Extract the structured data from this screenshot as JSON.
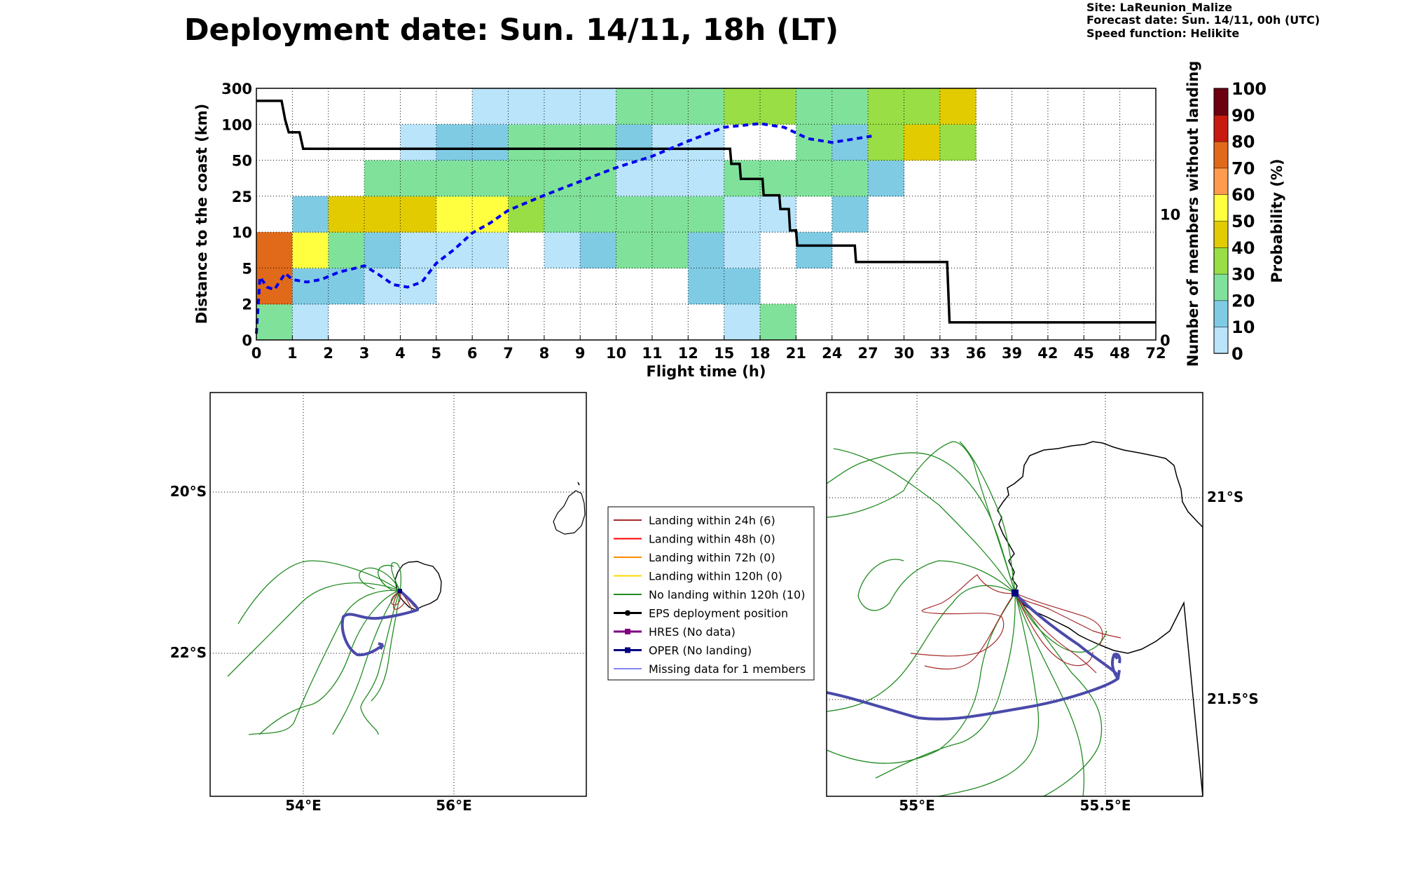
{
  "title": "Deployment date: Sun. 14/11, 18h (LT)",
  "info": {
    "site": "Site: LaReunion_Malize",
    "forecast": "Forecast date: Sun. 14/11, 00h (UTC)",
    "speed": "Speed function: Helikite"
  },
  "colors": {
    "bins": [
      "#b9e4fa",
      "#80cbe4",
      "#80e29a",
      "#99de44",
      "#e2cb00",
      "#ffff40",
      "#ff9b4e",
      "#e06a1a",
      "#c81a10",
      "#6a0010"
    ],
    "ensemble_line": "#000000",
    "oper_line": "#0000ee",
    "landing24": "#a52a2a",
    "landing48": "#ff0000",
    "landing72": "#ff8c00",
    "landing120": "#ffd700",
    "no_landing": "#228b22",
    "eps_pos": "#000000",
    "hres": "#800080",
    "oper": "#000080",
    "missing": "#5c5cf0"
  },
  "chart_data": [
    {
      "type": "heatmap",
      "xlabel": "Flight time (h)",
      "ylabel": "Distance to the coast (km)",
      "y2label": "Number of members without landing",
      "colorbar_label": "Probability (%)",
      "x_ticks": [
        "0",
        "1",
        "2",
        "3",
        "4",
        "5",
        "6",
        "7",
        "8",
        "9",
        "10",
        "11",
        "12",
        "15",
        "18",
        "21",
        "24",
        "27",
        "30",
        "33",
        "36",
        "39",
        "42",
        "45",
        "48",
        "72"
      ],
      "y_ticks": [
        "0",
        "2",
        "5",
        "10",
        "25",
        "50",
        "100",
        "300"
      ],
      "y2_ticks": [
        "0",
        "10"
      ],
      "y2_range": [
        0,
        20
      ],
      "colorbar_ticks": [
        "0",
        "10",
        "20",
        "30",
        "40",
        "50",
        "60",
        "70",
        "80",
        "90",
        "100"
      ],
      "grid": true,
      "cells": [
        {
          "col": 0,
          "row": 0,
          "bin": 2
        },
        {
          "col": 0,
          "row": 1,
          "bin": 7
        },
        {
          "col": 0,
          "row": 2,
          "bin": 7
        },
        {
          "col": 1,
          "row": 0,
          "bin": 0
        },
        {
          "col": 1,
          "row": 1,
          "bin": 1
        },
        {
          "col": 1,
          "row": 2,
          "bin": 5
        },
        {
          "col": 1,
          "row": 3,
          "bin": 1
        },
        {
          "col": 2,
          "row": 1,
          "bin": 1
        },
        {
          "col": 2,
          "row": 2,
          "bin": 2
        },
        {
          "col": 2,
          "row": 3,
          "bin": 4
        },
        {
          "col": 3,
          "row": 1,
          "bin": 0
        },
        {
          "col": 3,
          "row": 2,
          "bin": 1
        },
        {
          "col": 3,
          "row": 3,
          "bin": 4
        },
        {
          "col": 3,
          "row": 4,
          "bin": 2
        },
        {
          "col": 4,
          "row": 1,
          "bin": 0
        },
        {
          "col": 4,
          "row": 2,
          "bin": 0
        },
        {
          "col": 4,
          "row": 3,
          "bin": 4
        },
        {
          "col": 4,
          "row": 4,
          "bin": 2
        },
        {
          "col": 4,
          "row": 5,
          "bin": 0
        },
        {
          "col": 5,
          "row": 2,
          "bin": 0
        },
        {
          "col": 5,
          "row": 3,
          "bin": 5
        },
        {
          "col": 5,
          "row": 4,
          "bin": 2
        },
        {
          "col": 5,
          "row": 5,
          "bin": 1
        },
        {
          "col": 6,
          "row": 2,
          "bin": 0
        },
        {
          "col": 6,
          "row": 3,
          "bin": 5
        },
        {
          "col": 6,
          "row": 4,
          "bin": 2
        },
        {
          "col": 6,
          "row": 5,
          "bin": 1
        },
        {
          "col": 6,
          "row": 6,
          "bin": 0
        },
        {
          "col": 7,
          "row": 3,
          "bin": 3
        },
        {
          "col": 7,
          "row": 4,
          "bin": 2
        },
        {
          "col": 7,
          "row": 5,
          "bin": 2
        },
        {
          "col": 7,
          "row": 6,
          "bin": 0
        },
        {
          "col": 8,
          "row": 2,
          "bin": 0
        },
        {
          "col": 8,
          "row": 3,
          "bin": 2
        },
        {
          "col": 8,
          "row": 4,
          "bin": 2
        },
        {
          "col": 8,
          "row": 5,
          "bin": 2
        },
        {
          "col": 8,
          "row": 6,
          "bin": 0
        },
        {
          "col": 9,
          "row": 2,
          "bin": 1
        },
        {
          "col": 9,
          "row": 3,
          "bin": 2
        },
        {
          "col": 9,
          "row": 4,
          "bin": 2
        },
        {
          "col": 9,
          "row": 5,
          "bin": 2
        },
        {
          "col": 9,
          "row": 6,
          "bin": 0
        },
        {
          "col": 10,
          "row": 2,
          "bin": 2
        },
        {
          "col": 10,
          "row": 3,
          "bin": 2
        },
        {
          "col": 10,
          "row": 4,
          "bin": 0
        },
        {
          "col": 10,
          "row": 5,
          "bin": 1
        },
        {
          "col": 10,
          "row": 6,
          "bin": 2
        },
        {
          "col": 11,
          "row": 2,
          "bin": 2
        },
        {
          "col": 11,
          "row": 3,
          "bin": 2
        },
        {
          "col": 11,
          "row": 4,
          "bin": 0
        },
        {
          "col": 11,
          "row": 5,
          "bin": 0
        },
        {
          "col": 11,
          "row": 6,
          "bin": 2
        },
        {
          "col": 12,
          "row": 1,
          "bin": 1
        },
        {
          "col": 12,
          "row": 2,
          "bin": 1
        },
        {
          "col": 12,
          "row": 3,
          "bin": 2
        },
        {
          "col": 12,
          "row": 4,
          "bin": 0
        },
        {
          "col": 12,
          "row": 5,
          "bin": 0
        },
        {
          "col": 12,
          "row": 6,
          "bin": 2
        },
        {
          "col": 13,
          "row": 0,
          "bin": 0
        },
        {
          "col": 13,
          "row": 1,
          "bin": 1
        },
        {
          "col": 13,
          "row": 2,
          "bin": 0
        },
        {
          "col": 13,
          "row": 3,
          "bin": 0
        },
        {
          "col": 13,
          "row": 4,
          "bin": 2
        },
        {
          "col": 13,
          "row": 6,
          "bin": 3
        },
        {
          "col": 14,
          "row": 0,
          "bin": 2
        },
        {
          "col": 14,
          "row": 3,
          "bin": 0
        },
        {
          "col": 14,
          "row": 4,
          "bin": 2
        },
        {
          "col": 14,
          "row": 6,
          "bin": 3
        },
        {
          "col": 15,
          "row": 2,
          "bin": 1
        },
        {
          "col": 15,
          "row": 4,
          "bin": 2
        },
        {
          "col": 15,
          "row": 5,
          "bin": 2
        },
        {
          "col": 15,
          "row": 6,
          "bin": 2
        },
        {
          "col": 16,
          "row": 3,
          "bin": 1
        },
        {
          "col": 16,
          "row": 4,
          "bin": 2
        },
        {
          "col": 16,
          "row": 5,
          "bin": 1
        },
        {
          "col": 16,
          "row": 6,
          "bin": 2
        },
        {
          "col": 17,
          "row": 4,
          "bin": 1
        },
        {
          "col": 17,
          "row": 5,
          "bin": 3
        },
        {
          "col": 17,
          "row": 6,
          "bin": 3
        },
        {
          "col": 18,
          "row": 5,
          "bin": 4
        },
        {
          "col": 18,
          "row": 6,
          "bin": 3
        },
        {
          "col": 19,
          "row": 5,
          "bin": 3
        },
        {
          "col": 19,
          "row": 6,
          "bin": 4
        }
      ],
      "series": [
        {
          "style": "solid",
          "points": [
            [
              0,
              19
            ],
            [
              0.7,
              19
            ],
            [
              0.8,
              17.5
            ],
            [
              0.9,
              16.5
            ],
            [
              1.2,
              16.5
            ],
            [
              1.3,
              15.2
            ],
            [
              15.5,
              15.2
            ],
            [
              15.6,
              14
            ],
            [
              16.3,
              14
            ],
            [
              16.4,
              12.8
            ],
            [
              18.2,
              12.8
            ],
            [
              18.3,
              11.5
            ],
            [
              19.6,
              11.5
            ],
            [
              19.7,
              10.4
            ],
            [
              20.4,
              10.4
            ],
            [
              20.5,
              8.7
            ],
            [
              21,
              8.7
            ],
            [
              21.1,
              7.5
            ],
            [
              25.9,
              7.5
            ],
            [
              26,
              6.2
            ],
            [
              33.6,
              6.2
            ],
            [
              33.8,
              1.4
            ],
            [
              72,
              1.4
            ]
          ]
        },
        {
          "style": "dashed",
          "points": [
            [
              0,
              0.5
            ],
            [
              0.1,
              5
            ],
            [
              0.3,
              4.2
            ],
            [
              0.5,
              4
            ],
            [
              0.8,
              5.3
            ],
            [
              1,
              4.8
            ],
            [
              1.4,
              4.6
            ],
            [
              1.8,
              4.8
            ],
            [
              2.3,
              5.4
            ],
            [
              2.6,
              5.6
            ],
            [
              3,
              5.9
            ],
            [
              3.4,
              5.2
            ],
            [
              3.8,
              4.4
            ],
            [
              4.2,
              4.2
            ],
            [
              4.6,
              4.6
            ],
            [
              5,
              6.1
            ],
            [
              5.5,
              7.2
            ],
            [
              6,
              8.5
            ],
            [
              6.5,
              9.3
            ],
            [
              7,
              10.3
            ],
            [
              8,
              11.5
            ],
            [
              9,
              12.6
            ],
            [
              10,
              13.7
            ],
            [
              11,
              14.6
            ],
            [
              12,
              15.8
            ],
            [
              15,
              16.9
            ],
            [
              18,
              17.2
            ],
            [
              20,
              16.9
            ],
            [
              22,
              16.0
            ],
            [
              24,
              15.7
            ],
            [
              26,
              16.0
            ],
            [
              27.3,
              16.2
            ]
          ]
        }
      ]
    },
    {
      "type": "map",
      "x_ticks": [
        "54°E",
        "56°E"
      ],
      "y_ticks": [
        "20°S",
        "22°S"
      ],
      "grid": true
    },
    {
      "type": "map",
      "x_ticks": [
        "55°E",
        "55.5°E"
      ],
      "y_ticks": [
        "21°S",
        "21.5°S"
      ],
      "grid": true
    }
  ],
  "legend": [
    {
      "label": "Landing within 24h (6)",
      "color": "#a52a2a",
      "kind": "line"
    },
    {
      "label": "Landing within 48h (0)",
      "color": "#ff0000",
      "kind": "line"
    },
    {
      "label": "Landing within 72h (0)",
      "color": "#ff8c00",
      "kind": "line"
    },
    {
      "label": "Landing within 120h (0)",
      "color": "#ffd700",
      "kind": "line"
    },
    {
      "label": "No landing within 120h (10)",
      "color": "#228b22",
      "kind": "line"
    },
    {
      "label": "EPS deployment position",
      "color": "#000000",
      "kind": "circle"
    },
    {
      "label": "HRES (No data)",
      "color": "#800080",
      "kind": "square"
    },
    {
      "label": "OPER (No landing)",
      "color": "#000080",
      "kind": "square"
    },
    {
      "label": "Missing data for 1 members",
      "color": "#5c5cf0",
      "kind": "thin"
    }
  ]
}
